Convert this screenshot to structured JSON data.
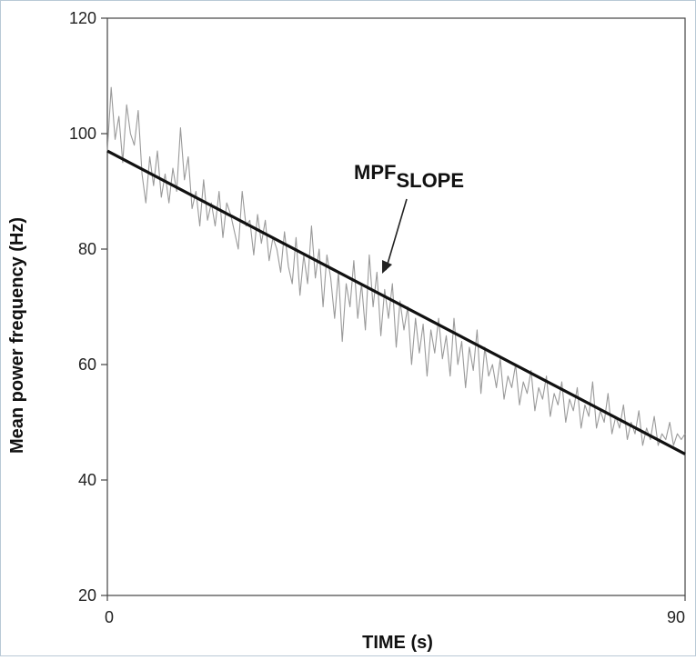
{
  "chart_data": {
    "type": "line",
    "xlabel": "TIME (s)",
    "ylabel": "Mean power frequency (Hz)",
    "xlim": [
      0,
      90
    ],
    "ylim": [
      20,
      120
    ],
    "x_ticks": [
      "0",
      "90"
    ],
    "y_ticks": [
      "20",
      "40",
      "60",
      "80",
      "100",
      "120"
    ],
    "grid": false,
    "annotation": {
      "main": "MPF",
      "subscript": "SLOPE",
      "points_to": {
        "x": 43,
        "y": 72
      }
    },
    "series": [
      {
        "style": "raw-signal",
        "color": "#9a9a9a",
        "x": [
          0,
          0.6,
          1.2,
          1.8,
          2.4,
          3,
          3.6,
          4.2,
          4.8,
          5.4,
          6,
          6.6,
          7.2,
          7.8,
          8.4,
          9,
          9.6,
          10.2,
          10.8,
          11.4,
          12,
          12.6,
          13.2,
          13.8,
          14.4,
          15,
          15.6,
          16.2,
          16.8,
          17.4,
          18,
          18.6,
          19.2,
          19.8,
          20.4,
          21,
          21.6,
          22.2,
          22.8,
          23.4,
          24,
          24.6,
          25.2,
          25.8,
          26.4,
          27,
          27.6,
          28.2,
          28.8,
          29.4,
          30,
          30.6,
          31.2,
          31.8,
          32.4,
          33,
          33.6,
          34.2,
          34.8,
          35.4,
          36,
          36.6,
          37.2,
          37.8,
          38.4,
          39,
          39.6,
          40.2,
          40.8,
          41.4,
          42,
          42.6,
          43.2,
          43.8,
          44.4,
          45,
          45.6,
          46.2,
          46.8,
          47.4,
          48,
          48.6,
          49.2,
          49.8,
          50.4,
          51,
          51.6,
          52.2,
          52.8,
          53.4,
          54,
          54.6,
          55.2,
          55.8,
          56.4,
          57,
          57.6,
          58.2,
          58.8,
          59.4,
          60,
          60.6,
          61.2,
          61.8,
          62.4,
          63,
          63.6,
          64.2,
          64.8,
          65.4,
          66,
          66.6,
          67.2,
          67.8,
          68.4,
          69,
          69.6,
          70.2,
          70.8,
          71.4,
          72,
          72.6,
          73.2,
          73.8,
          74.4,
          75,
          75.6,
          76.2,
          76.8,
          77.4,
          78,
          78.6,
          79.2,
          79.8,
          80.4,
          81,
          81.6,
          82.2,
          82.8,
          83.4,
          84,
          84.6,
          85.2,
          85.8,
          86.4,
          87,
          87.6,
          88.2,
          88.8,
          89.4,
          90
        ],
        "y": [
          97,
          108,
          99,
          103,
          95,
          105,
          100,
          98,
          104,
          93,
          88,
          96,
          91,
          97,
          89,
          93,
          88,
          94,
          90,
          101,
          92,
          96,
          87,
          90,
          84,
          92,
          85,
          88,
          84,
          90,
          82,
          88,
          86,
          83,
          80,
          90,
          84,
          85,
          79,
          86,
          81,
          85,
          78,
          82,
          80,
          76,
          83,
          77,
          74,
          82,
          72,
          79,
          74,
          84,
          75,
          80,
          70,
          79,
          75,
          68,
          76,
          64,
          74,
          70,
          78,
          68,
          74,
          66,
          79,
          70,
          76,
          65,
          73,
          68,
          74,
          63,
          71,
          66,
          70,
          60,
          68,
          62,
          67,
          58,
          66,
          62,
          68,
          61,
          65,
          58,
          68,
          60,
          64,
          56,
          63,
          59,
          66,
          55,
          63,
          58,
          60,
          56,
          61,
          54,
          58,
          56,
          60,
          53,
          57,
          55,
          59,
          52,
          56,
          54,
          58,
          51,
          55,
          53,
          57,
          50,
          54,
          52,
          56,
          49,
          53,
          51,
          57,
          49,
          52,
          50,
          55,
          48,
          51,
          49,
          53,
          47,
          50,
          48,
          52,
          46,
          49,
          47,
          51,
          46,
          48,
          47,
          50,
          46,
          48,
          47,
          48
        ],
        "values_note": ""
      },
      {
        "style": "fitted-line",
        "color": "#111111",
        "x": [
          0,
          90
        ],
        "y": [
          97,
          44.5
        ]
      }
    ]
  }
}
